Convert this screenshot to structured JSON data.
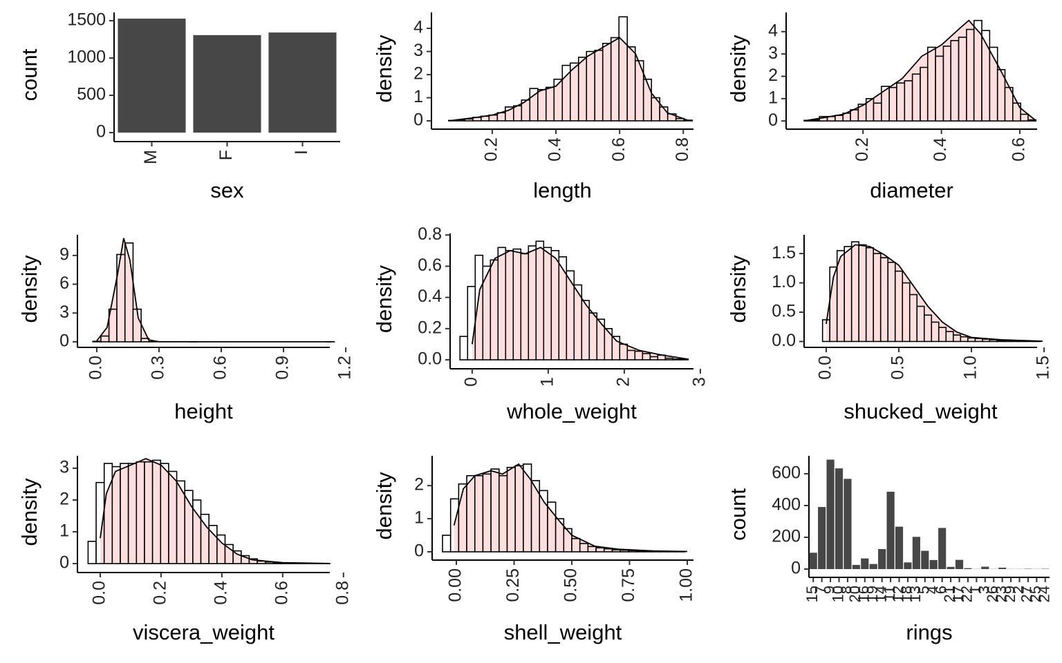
{
  "chart_data": [
    {
      "type": "bar",
      "x_label": "sex",
      "y_label": "count",
      "categories": [
        "M",
        "F",
        "I"
      ],
      "values": [
        1528,
        1307,
        1342
      ],
      "color": "#474747",
      "ylim": [
        -65,
        1611
      ],
      "yticks": [
        0,
        500,
        1000,
        1500
      ]
    },
    {
      "type": "histogram",
      "x_label": "length",
      "y_label": "density",
      "bins": [
        0.063,
        0.088,
        0.114,
        0.139,
        0.165,
        0.19,
        0.216,
        0.241,
        0.267,
        0.292,
        0.318,
        0.343,
        0.369,
        0.394,
        0.42,
        0.445,
        0.471,
        0.496,
        0.522,
        0.547,
        0.573,
        0.598,
        0.624,
        0.649,
        0.675,
        0.7,
        0.726,
        0.751,
        0.777,
        0.802,
        0.828
      ],
      "values": [
        0.02,
        0.05,
        0.08,
        0.15,
        0.2,
        0.25,
        0.35,
        0.6,
        0.65,
        0.9,
        1.4,
        1.35,
        1.45,
        1.8,
        2.4,
        2.5,
        2.75,
        3.0,
        3.05,
        3.35,
        3.6,
        4.5,
        3.2,
        2.6,
        1.8,
        1.0,
        0.6,
        0.3,
        0.1,
        0.03
      ],
      "density": {
        "x": [
          0.075,
          0.15,
          0.2,
          0.25,
          0.3,
          0.35,
          0.4,
          0.45,
          0.5,
          0.55,
          0.6,
          0.65,
          0.7,
          0.75,
          0.815
        ],
        "y": [
          0.02,
          0.15,
          0.25,
          0.45,
          0.8,
          1.3,
          1.5,
          2.2,
          2.8,
          3.2,
          3.6,
          2.9,
          1.2,
          0.35,
          0.02
        ]
      },
      "bar_fill": "#ffffff",
      "edge_color": "#000000",
      "area_color": "#ffdede",
      "line_color": "#000000",
      "xlim": [
        0.009,
        0.832
      ],
      "ylim": [
        -0.18,
        4.69
      ],
      "xticks": [
        0.2,
        0.4,
        0.6,
        0.8
      ],
      "yticks": [
        0,
        1,
        2,
        3,
        4
      ]
    },
    {
      "type": "histogram",
      "x_label": "diameter",
      "y_label": "density",
      "bins": [
        0.05,
        0.07,
        0.089,
        0.109,
        0.129,
        0.149,
        0.168,
        0.188,
        0.208,
        0.227,
        0.247,
        0.267,
        0.286,
        0.306,
        0.326,
        0.346,
        0.365,
        0.385,
        0.405,
        0.424,
        0.444,
        0.464,
        0.483,
        0.503,
        0.523,
        0.543,
        0.562,
        0.582,
        0.602,
        0.621,
        0.641
      ],
      "values": [
        0.03,
        0.05,
        0.2,
        0.2,
        0.25,
        0.35,
        0.5,
        0.75,
        1.0,
        0.8,
        1.55,
        1.5,
        1.7,
        1.8,
        2.1,
        2.4,
        3.3,
        2.9,
        3.35,
        3.6,
        3.75,
        4.1,
        4.5,
        4.05,
        3.3,
        2.3,
        1.5,
        0.8,
        0.3,
        0.05
      ],
      "density": {
        "x": [
          0.055,
          0.1,
          0.15,
          0.2,
          0.25,
          0.3,
          0.35,
          0.4,
          0.45,
          0.47,
          0.5,
          0.55,
          0.6,
          0.64
        ],
        "y": [
          0.02,
          0.15,
          0.3,
          0.7,
          1.3,
          1.9,
          2.9,
          3.4,
          4.2,
          4.5,
          3.9,
          2.3,
          0.6,
          0.03
        ]
      },
      "bar_fill": "#ffffff",
      "edge_color": "#000000",
      "area_color": "#ffdede",
      "line_color": "#000000",
      "xlim": [
        0.004,
        0.644
      ],
      "ylim": [
        -0.18,
        4.86
      ],
      "xticks": [
        0.2,
        0.4,
        0.6
      ],
      "yticks": [
        0,
        1,
        2,
        3,
        4
      ]
    },
    {
      "type": "histogram",
      "x_label": "height",
      "y_label": "density",
      "bins": [
        -0.019,
        0.02,
        0.059,
        0.097,
        0.136,
        0.175,
        0.214,
        0.252,
        0.291,
        0.33,
        0.369,
        0.408,
        0.446,
        0.485,
        0.524,
        0.563,
        0.602,
        0.64,
        0.679,
        0.718,
        0.757,
        0.796,
        0.834,
        0.873,
        0.912,
        0.951,
        0.99,
        1.028,
        1.067,
        1.106,
        1.145
      ],
      "values": [
        0.05,
        0.6,
        3.4,
        9.1,
        10.3,
        3.4,
        0.35,
        0.02,
        0,
        0,
        0,
        0,
        0.006,
        0,
        0,
        0,
        0,
        0,
        0,
        0,
        0,
        0,
        0,
        0,
        0,
        0,
        0,
        0,
        0,
        0.006
      ],
      "density": {
        "x": [
          0,
          0.05,
          0.1,
          0.13,
          0.16,
          0.2,
          0.25,
          0.3,
          0.6,
          0.9,
          1.13
        ],
        "y": [
          0.1,
          1.5,
          7,
          10.8,
          8.5,
          2.5,
          0.2,
          0.01,
          0,
          0,
          0
        ]
      },
      "bar_fill": "#ffffff",
      "edge_color": "#000000",
      "area_color": "#ffdede",
      "line_color": "#000000",
      "xlim": [
        -0.093,
        1.123
      ],
      "ylim": [
        -0.15,
        11.15
      ],
      "xticks": [
        {
          "value": 0,
          "label": "0.0"
        },
        0.3,
        0.6,
        0.9,
        1.2
      ],
      "yticks": [
        0,
        3,
        6,
        9
      ]
    },
    {
      "type": "histogram",
      "x_label": "whole_weight",
      "y_label": "density",
      "bins": [
        -0.16,
        -0.06,
        0.04,
        0.14,
        0.24,
        0.34,
        0.44,
        0.54,
        0.64,
        0.74,
        0.84,
        0.94,
        1.04,
        1.14,
        1.24,
        1.34,
        1.44,
        1.54,
        1.64,
        1.74,
        1.84,
        1.94,
        2.04,
        2.14,
        2.24,
        2.34,
        2.44,
        2.54,
        2.64,
        2.74,
        2.84
      ],
      "values": [
        0.15,
        0.47,
        0.67,
        0.6,
        0.64,
        0.72,
        0.7,
        0.71,
        0.68,
        0.73,
        0.76,
        0.72,
        0.7,
        0.66,
        0.57,
        0.48,
        0.38,
        0.3,
        0.26,
        0.2,
        0.15,
        0.1,
        0.06,
        0.055,
        0.04,
        0.02,
        0.03,
        0.01,
        0.005,
        0.005
      ],
      "density": {
        "x": [
          0,
          0.1,
          0.3,
          0.5,
          0.7,
          0.9,
          1.1,
          1.3,
          1.5,
          1.7,
          1.9,
          2.2,
          2.5,
          2.83
        ],
        "y": [
          0.1,
          0.45,
          0.65,
          0.7,
          0.68,
          0.72,
          0.65,
          0.5,
          0.35,
          0.23,
          0.12,
          0.06,
          0.03,
          0.005
        ]
      },
      "bar_fill": "#ffffff",
      "edge_color": "#000000",
      "area_color": "#ffdede",
      "line_color": "#000000",
      "xlim": [
        -0.29,
        2.91
      ],
      "ylim": [
        -0.031,
        0.81
      ],
      "xticks": [
        0,
        1,
        2,
        3
      ],
      "yticks": [
        {
          "value": 0,
          "label": "0.0"
        },
        0.2,
        0.4,
        0.6,
        0.8
      ]
    },
    {
      "type": "histogram",
      "x_label": "shucked_weight",
      "y_label": "density",
      "bins": [
        -0.025,
        0.025,
        0.075,
        0.125,
        0.175,
        0.225,
        0.275,
        0.325,
        0.375,
        0.425,
        0.475,
        0.525,
        0.575,
        0.625,
        0.675,
        0.725,
        0.775,
        0.825,
        0.875,
        0.925,
        0.975,
        1.025,
        1.075,
        1.125,
        1.175,
        1.225,
        1.275,
        1.325,
        1.375,
        1.425,
        1.475
      ],
      "values": [
        0.37,
        1.27,
        1.55,
        1.62,
        1.7,
        1.65,
        1.6,
        1.5,
        1.43,
        1.35,
        1.2,
        1.0,
        0.8,
        0.6,
        0.45,
        0.33,
        0.24,
        0.17,
        0.11,
        0.08,
        0.06,
        0.05,
        0.04,
        0.03,
        0.02,
        0.02,
        0.01,
        0.005,
        0.005,
        0.005
      ],
      "density": {
        "x": [
          0,
          0.05,
          0.1,
          0.2,
          0.3,
          0.4,
          0.5,
          0.6,
          0.7,
          0.8,
          0.9,
          1.0,
          1.2,
          1.49
        ],
        "y": [
          0.3,
          1.1,
          1.45,
          1.65,
          1.62,
          1.48,
          1.3,
          0.95,
          0.6,
          0.33,
          0.16,
          0.07,
          0.03,
          0.005
        ]
      },
      "bar_fill": "#ffffff",
      "edge_color": "#000000",
      "area_color": "#ffdede",
      "line_color": "#000000",
      "xlim": [
        -0.152,
        1.452
      ],
      "ylim": [
        -0.03,
        1.82
      ],
      "xticks": [
        {
          "value": 0,
          "label": "0.0"
        },
        0.5,
        {
          "value": 1,
          "label": "1.0"
        },
        1.5
      ],
      "yticks": [
        {
          "value": 0,
          "label": "0.0"
        },
        0.5,
        {
          "value": 1,
          "label": "1.0"
        },
        1.5
      ]
    },
    {
      "type": "histogram",
      "x_label": "viscera_weight",
      "y_label": "density",
      "bins": [
        -0.04,
        -0.0135,
        0.013,
        0.0395,
        0.066,
        0.0925,
        0.119,
        0.1455,
        0.172,
        0.1985,
        0.225,
        0.2515,
        0.278,
        0.3045,
        0.331,
        0.3575,
        0.384,
        0.4105,
        0.437,
        0.4635,
        0.49,
        0.5165,
        0.543,
        0.5695,
        0.596,
        0.6225,
        0.649,
        0.6755,
        0.702,
        0.7285,
        0.755
      ],
      "values": [
        0.7,
        2.55,
        3.15,
        3.05,
        3.15,
        3.15,
        3.2,
        3.2,
        3.25,
        3.15,
        2.9,
        2.6,
        2.3,
        2.0,
        1.55,
        1.2,
        0.9,
        0.6,
        0.4,
        0.25,
        0.15,
        0.08,
        0.05,
        0.03,
        0.02,
        0.01,
        0.01,
        0.005,
        0.005,
        0.005
      ],
      "density": {
        "x": [
          0,
          0.02,
          0.05,
          0.1,
          0.15,
          0.2,
          0.25,
          0.3,
          0.35,
          0.4,
          0.45,
          0.5,
          0.6,
          0.755
        ],
        "y": [
          0.8,
          2.2,
          2.9,
          3.1,
          3.3,
          3.1,
          2.6,
          1.8,
          1.15,
          0.65,
          0.3,
          0.12,
          0.03,
          0.005
        ]
      },
      "bar_fill": "#ffffff",
      "edge_color": "#000000",
      "area_color": "#ffdede",
      "line_color": "#000000",
      "xlim": [
        -0.075,
        0.755
      ],
      "ylim": [
        -0.15,
        3.39
      ],
      "xticks": [
        {
          "value": 0,
          "label": "0.0"
        },
        0.2,
        0.4,
        0.6,
        0.8
      ],
      "yticks": [
        0,
        1,
        2,
        3
      ]
    },
    {
      "type": "histogram",
      "x_label": "shell_weight",
      "y_label": "density",
      "bins": [
        -0.06,
        -0.025,
        0.01,
        0.045,
        0.08,
        0.115,
        0.15,
        0.185,
        0.22,
        0.255,
        0.29,
        0.325,
        0.36,
        0.395,
        0.43,
        0.465,
        0.5,
        0.535,
        0.57,
        0.605,
        0.64,
        0.675,
        0.71,
        0.745,
        0.78,
        0.815,
        0.85,
        0.885,
        0.92,
        0.955,
        0.99
      ],
      "values": [
        0.5,
        1.6,
        2.05,
        2.3,
        2.3,
        2.35,
        2.5,
        2.3,
        2.55,
        2.6,
        2.65,
        2.15,
        1.85,
        1.5,
        1.0,
        0.7,
        0.4,
        0.25,
        0.16,
        0.12,
        0.09,
        0.06,
        0.05,
        0.04,
        0.03,
        0.03,
        0.02,
        0.01,
        0.01,
        0.01
      ],
      "density": {
        "x": [
          -0.01,
          0.03,
          0.08,
          0.15,
          0.2,
          0.27,
          0.32,
          0.38,
          0.45,
          0.5,
          0.6,
          0.7,
          0.85,
          1.0
        ],
        "y": [
          0.8,
          1.9,
          2.3,
          2.45,
          2.35,
          2.65,
          2.2,
          1.5,
          0.9,
          0.5,
          0.17,
          0.08,
          0.03,
          0.01
        ]
      },
      "bar_fill": "#ffffff",
      "edge_color": "#000000",
      "area_color": "#ffdede",
      "line_color": "#000000",
      "xlim": [
        -0.105,
        1.027
      ],
      "ylim": [
        -0.125,
        2.9
      ],
      "xticks": [
        {
          "value": 0,
          "label": "0.00"
        },
        0.25,
        {
          "value": 0.5,
          "label": "0.50"
        },
        0.75,
        {
          "value": 1,
          "label": "1.00"
        }
      ],
      "yticks": [
        0,
        1,
        2
      ]
    },
    {
      "type": "bar",
      "x_label": "rings",
      "y_label": "count",
      "categories": [
        "15",
        "7",
        "9",
        "10",
        "8",
        "20",
        "16",
        "19",
        "14",
        "11",
        "12",
        "18",
        "13",
        "5",
        "4",
        "6",
        "21",
        "17",
        "22",
        "1",
        "3",
        "26",
        "23",
        "29",
        "2",
        "27",
        "25",
        "24"
      ],
      "values": [
        103,
        391,
        689,
        634,
        568,
        26,
        67,
        32,
        126,
        487,
        267,
        42,
        203,
        115,
        57,
        259,
        14,
        58,
        6,
        1,
        15,
        1,
        9,
        1,
        1,
        2,
        1,
        2
      ],
      "color": "#474747",
      "ylim": [
        -26,
        713
      ],
      "yticks": [
        0,
        200,
        400,
        600
      ]
    }
  ]
}
